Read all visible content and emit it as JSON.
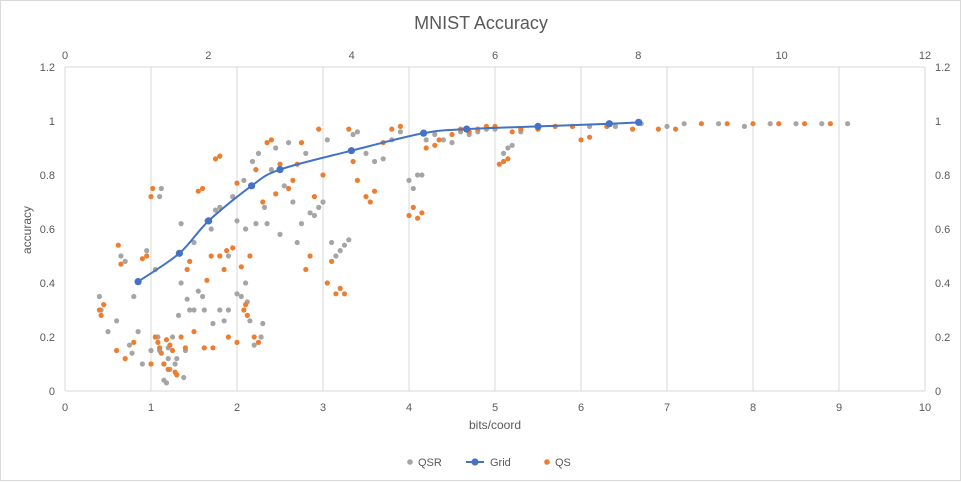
{
  "chart_data": {
    "type": "scatter",
    "title": "MNIST Accuracy",
    "xlabel": "bits/coord",
    "ylabel": "accuracy",
    "xlim": [
      0,
      10
    ],
    "ylim": [
      0,
      1.2
    ],
    "x2lim": [
      0,
      12
    ],
    "y2lim": [
      0,
      1.2
    ],
    "x_ticks": [
      "0",
      "1",
      "2",
      "3",
      "4",
      "5",
      "6",
      "7",
      "8",
      "9",
      "10"
    ],
    "x2_ticks": [
      "0",
      "2",
      "4",
      "6",
      "8",
      "10",
      "12"
    ],
    "y_ticks": [
      "0",
      "0.2",
      "0.4",
      "0.6",
      "0.8",
      "1",
      "1.2"
    ],
    "grid": "vertical",
    "legend_position": "bottom",
    "colors": {
      "QSR": "#a5a5a5",
      "Grid": "#4472c4",
      "QS": "#ed7d31"
    },
    "series": [
      {
        "name": "QSR",
        "marker": "dot",
        "points": [
          [
            0.4,
            0.35
          ],
          [
            0.42,
            0.3
          ],
          [
            0.5,
            0.22
          ],
          [
            0.6,
            0.26
          ],
          [
            0.65,
            0.5
          ],
          [
            0.7,
            0.48
          ],
          [
            0.75,
            0.17
          ],
          [
            0.78,
            0.14
          ],
          [
            0.8,
            0.35
          ],
          [
            0.85,
            0.22
          ],
          [
            0.9,
            0.1
          ],
          [
            0.95,
            0.52
          ],
          [
            1.0,
            0.15
          ],
          [
            1.05,
            0.45
          ],
          [
            1.08,
            0.2
          ],
          [
            1.1,
            0.15
          ],
          [
            1.1,
            0.72
          ],
          [
            1.12,
            0.75
          ],
          [
            1.15,
            0.04
          ],
          [
            1.15,
            0.1
          ],
          [
            1.18,
            0.03
          ],
          [
            1.2,
            0.12
          ],
          [
            1.2,
            0.16
          ],
          [
            1.22,
            0.08
          ],
          [
            1.25,
            0.2
          ],
          [
            1.28,
            0.1
          ],
          [
            1.3,
            0.06
          ],
          [
            1.3,
            0.12
          ],
          [
            1.32,
            0.28
          ],
          [
            1.35,
            0.4
          ],
          [
            1.35,
            0.62
          ],
          [
            1.38,
            0.05
          ],
          [
            1.4,
            0.15
          ],
          [
            1.42,
            0.34
          ],
          [
            1.45,
            0.3
          ],
          [
            1.5,
            0.3
          ],
          [
            1.5,
            0.55
          ],
          [
            1.55,
            0.37
          ],
          [
            1.6,
            0.35
          ],
          [
            1.62,
            0.3
          ],
          [
            1.65,
            0.63
          ],
          [
            1.7,
            0.6
          ],
          [
            1.72,
            0.25
          ],
          [
            1.75,
            0.67
          ],
          [
            1.8,
            0.3
          ],
          [
            1.8,
            0.68
          ],
          [
            1.85,
            0.26
          ],
          [
            1.9,
            0.5
          ],
          [
            1.9,
            0.3
          ],
          [
            1.95,
            0.72
          ],
          [
            2.0,
            0.36
          ],
          [
            2.0,
            0.63
          ],
          [
            2.05,
            0.35
          ],
          [
            2.08,
            0.78
          ],
          [
            2.1,
            0.4
          ],
          [
            2.1,
            0.6
          ],
          [
            2.12,
            0.33
          ],
          [
            2.15,
            0.26
          ],
          [
            2.18,
            0.85
          ],
          [
            2.2,
            0.17
          ],
          [
            2.22,
            0.62
          ],
          [
            2.25,
            0.88
          ],
          [
            2.28,
            0.2
          ],
          [
            2.3,
            0.25
          ],
          [
            2.32,
            0.68
          ],
          [
            2.35,
            0.62
          ],
          [
            2.4,
            0.82
          ],
          [
            2.45,
            0.9
          ],
          [
            2.5,
            0.58
          ],
          [
            2.55,
            0.76
          ],
          [
            2.6,
            0.92
          ],
          [
            2.65,
            0.7
          ],
          [
            2.7,
            0.55
          ],
          [
            2.75,
            0.62
          ],
          [
            2.8,
            0.88
          ],
          [
            2.85,
            0.66
          ],
          [
            2.9,
            0.65
          ],
          [
            2.95,
            0.68
          ],
          [
            3.0,
            0.7
          ],
          [
            3.05,
            0.93
          ],
          [
            3.1,
            0.55
          ],
          [
            3.15,
            0.5
          ],
          [
            3.2,
            0.52
          ],
          [
            3.25,
            0.54
          ],
          [
            3.3,
            0.56
          ],
          [
            3.35,
            0.95
          ],
          [
            3.4,
            0.96
          ],
          [
            3.5,
            0.88
          ],
          [
            3.6,
            0.85
          ],
          [
            3.7,
            0.86
          ],
          [
            3.8,
            0.93
          ],
          [
            3.9,
            0.96
          ],
          [
            4.0,
            0.78
          ],
          [
            4.05,
            0.75
          ],
          [
            4.1,
            0.8
          ],
          [
            4.15,
            0.8
          ],
          [
            4.2,
            0.93
          ],
          [
            4.3,
            0.95
          ],
          [
            4.4,
            0.93
          ],
          [
            4.5,
            0.92
          ],
          [
            4.6,
            0.96
          ],
          [
            4.7,
            0.95
          ],
          [
            4.8,
            0.96
          ],
          [
            4.9,
            0.97
          ],
          [
            5.0,
            0.97
          ],
          [
            5.1,
            0.88
          ],
          [
            5.15,
            0.9
          ],
          [
            5.2,
            0.91
          ],
          [
            5.3,
            0.96
          ],
          [
            5.5,
            0.97
          ],
          [
            5.7,
            0.98
          ],
          [
            5.9,
            0.98
          ],
          [
            6.1,
            0.98
          ],
          [
            6.4,
            0.98
          ],
          [
            6.7,
            0.99
          ],
          [
            7.0,
            0.98
          ],
          [
            7.2,
            0.99
          ],
          [
            7.6,
            0.99
          ],
          [
            7.9,
            0.98
          ],
          [
            8.2,
            0.99
          ],
          [
            8.5,
            0.99
          ],
          [
            8.8,
            0.99
          ],
          [
            9.1,
            0.99
          ]
        ]
      },
      {
        "name": "Grid",
        "marker": "line",
        "points": [
          [
            0.85,
            0.405
          ],
          [
            1.33,
            0.51
          ],
          [
            1.67,
            0.63
          ],
          [
            2.17,
            0.76
          ],
          [
            2.5,
            0.82
          ],
          [
            3.33,
            0.89
          ],
          [
            4.17,
            0.955
          ],
          [
            4.67,
            0.97
          ],
          [
            5.5,
            0.98
          ],
          [
            6.33,
            0.99
          ],
          [
            6.67,
            0.995
          ]
        ]
      },
      {
        "name": "QS",
        "marker": "dot",
        "points": [
          [
            0.4,
            0.3
          ],
          [
            0.42,
            0.28
          ],
          [
            0.45,
            0.32
          ],
          [
            0.6,
            0.15
          ],
          [
            0.62,
            0.54
          ],
          [
            0.65,
            0.47
          ],
          [
            0.7,
            0.12
          ],
          [
            0.8,
            0.18
          ],
          [
            0.9,
            0.49
          ],
          [
            0.95,
            0.5
          ],
          [
            1.0,
            0.1
          ],
          [
            1.0,
            0.72
          ],
          [
            1.02,
            0.75
          ],
          [
            1.05,
            0.2
          ],
          [
            1.08,
            0.18
          ],
          [
            1.1,
            0.16
          ],
          [
            1.12,
            0.14
          ],
          [
            1.15,
            0.1
          ],
          [
            1.18,
            0.19
          ],
          [
            1.2,
            0.08
          ],
          [
            1.22,
            0.17
          ],
          [
            1.25,
            0.15
          ],
          [
            1.28,
            0.07
          ],
          [
            1.3,
            0.06
          ],
          [
            1.35,
            0.2
          ],
          [
            1.4,
            0.16
          ],
          [
            1.42,
            0.45
          ],
          [
            1.45,
            0.48
          ],
          [
            1.5,
            0.22
          ],
          [
            1.55,
            0.74
          ],
          [
            1.6,
            0.75
          ],
          [
            1.62,
            0.16
          ],
          [
            1.65,
            0.41
          ],
          [
            1.7,
            0.5
          ],
          [
            1.72,
            0.16
          ],
          [
            1.75,
            0.86
          ],
          [
            1.8,
            0.87
          ],
          [
            1.8,
            0.5
          ],
          [
            1.85,
            0.45
          ],
          [
            1.88,
            0.52
          ],
          [
            1.9,
            0.2
          ],
          [
            1.95,
            0.53
          ],
          [
            2.0,
            0.77
          ],
          [
            2.0,
            0.18
          ],
          [
            2.05,
            0.46
          ],
          [
            2.08,
            0.3
          ],
          [
            2.1,
            0.32
          ],
          [
            2.12,
            0.28
          ],
          [
            2.15,
            0.5
          ],
          [
            2.2,
            0.2
          ],
          [
            2.22,
            0.82
          ],
          [
            2.25,
            0.18
          ],
          [
            2.3,
            0.7
          ],
          [
            2.35,
            0.92
          ],
          [
            2.4,
            0.93
          ],
          [
            2.45,
            0.73
          ],
          [
            2.5,
            0.84
          ],
          [
            2.6,
            0.75
          ],
          [
            2.65,
            0.78
          ],
          [
            2.7,
            0.84
          ],
          [
            2.75,
            0.92
          ],
          [
            2.8,
            0.45
          ],
          [
            2.85,
            0.5
          ],
          [
            2.9,
            0.72
          ],
          [
            2.95,
            0.97
          ],
          [
            3.0,
            0.8
          ],
          [
            3.05,
            0.4
          ],
          [
            3.1,
            0.48
          ],
          [
            3.15,
            0.36
          ],
          [
            3.2,
            0.38
          ],
          [
            3.25,
            0.36
          ],
          [
            3.3,
            0.97
          ],
          [
            3.35,
            0.85
          ],
          [
            3.4,
            0.78
          ],
          [
            3.5,
            0.72
          ],
          [
            3.55,
            0.7
          ],
          [
            3.6,
            0.74
          ],
          [
            3.7,
            0.92
          ],
          [
            3.8,
            0.97
          ],
          [
            3.9,
            0.98
          ],
          [
            4.0,
            0.65
          ],
          [
            4.05,
            0.68
          ],
          [
            4.1,
            0.64
          ],
          [
            4.15,
            0.66
          ],
          [
            4.2,
            0.9
          ],
          [
            4.3,
            0.91
          ],
          [
            4.35,
            0.93
          ],
          [
            4.5,
            0.95
          ],
          [
            4.6,
            0.97
          ],
          [
            4.7,
            0.96
          ],
          [
            4.8,
            0.97
          ],
          [
            4.9,
            0.98
          ],
          [
            5.0,
            0.98
          ],
          [
            5.05,
            0.84
          ],
          [
            5.1,
            0.85
          ],
          [
            5.15,
            0.86
          ],
          [
            5.2,
            0.96
          ],
          [
            5.3,
            0.97
          ],
          [
            5.5,
            0.97
          ],
          [
            5.7,
            0.98
          ],
          [
            5.9,
            0.98
          ],
          [
            6.0,
            0.93
          ],
          [
            6.1,
            0.94
          ],
          [
            6.3,
            0.98
          ],
          [
            6.6,
            0.97
          ],
          [
            6.9,
            0.97
          ],
          [
            7.1,
            0.97
          ],
          [
            7.4,
            0.99
          ],
          [
            7.7,
            0.99
          ],
          [
            8.0,
            0.99
          ],
          [
            8.3,
            0.99
          ],
          [
            8.6,
            0.99
          ],
          [
            8.9,
            0.99
          ]
        ]
      }
    ]
  }
}
